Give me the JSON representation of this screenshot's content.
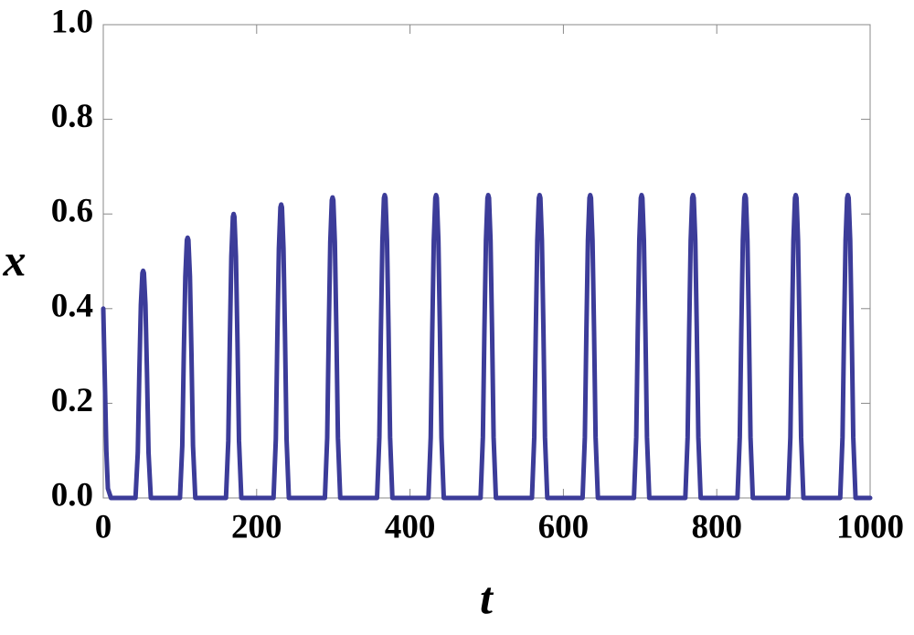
{
  "chart_data": {
    "type": "line",
    "x_label": "t",
    "y_label": "x",
    "color": "#3c3c99",
    "xlim": [
      0,
      1000
    ],
    "ylim": [
      0,
      1
    ],
    "xticks": [
      0,
      200,
      400,
      600,
      800,
      1000
    ],
    "yticks": [
      {
        "value": 0,
        "label": "0.0"
      },
      0.2,
      0.4,
      0.6,
      0.8,
      {
        "value": 1,
        "label": "1.0"
      }
    ],
    "x": [
      0,
      2,
      4,
      6,
      10,
      42,
      45,
      47,
      49,
      51,
      52,
      53,
      55,
      57,
      59,
      62,
      100,
      103,
      105,
      107,
      109,
      110,
      111,
      113,
      115,
      117,
      120,
      160,
      163,
      165,
      167,
      169,
      170,
      171,
      173,
      175,
      177,
      180,
      222,
      225,
      227,
      229,
      231,
      232,
      233,
      235,
      237,
      239,
      242,
      289,
      292,
      294,
      296,
      298,
      299,
      300,
      302,
      304,
      306,
      309,
      357,
      360,
      362,
      364,
      366,
      367,
      368,
      370,
      372,
      374,
      377,
      424,
      427,
      429,
      431,
      433,
      434,
      435,
      437,
      439,
      441,
      444,
      492,
      495,
      497,
      499,
      501,
      502,
      503,
      505,
      507,
      509,
      512,
      559,
      562,
      564,
      566,
      568,
      569,
      570,
      572,
      574,
      576,
      579,
      625,
      628,
      630,
      632,
      634,
      635,
      636,
      638,
      640,
      642,
      645,
      692,
      695,
      697,
      699,
      701,
      702,
      703,
      705,
      707,
      709,
      712,
      759,
      762,
      764,
      766,
      768,
      769,
      770,
      772,
      774,
      776,
      779,
      827,
      830,
      832,
      834,
      836,
      837,
      838,
      840,
      842,
      844,
      847,
      893,
      896,
      898,
      900,
      902,
      903,
      904,
      906,
      908,
      910,
      913,
      961,
      964,
      966,
      968,
      970,
      971,
      972,
      974,
      976,
      978,
      981,
      1000
    ],
    "values": [
      0.4,
      0.25,
      0.1,
      0.02,
      0,
      0,
      0.096,
      0.264,
      0.408,
      0.475,
      0.48,
      0.475,
      0.408,
      0.264,
      0.096,
      0,
      0,
      0.11,
      0.303,
      0.468,
      0.545,
      0.55,
      0.545,
      0.468,
      0.303,
      0.11,
      0,
      0,
      0.12,
      0.33,
      0.51,
      0.594,
      0.6,
      0.594,
      0.51,
      0.33,
      0.12,
      0,
      0,
      0.124,
      0.341,
      0.527,
      0.614,
      0.62,
      0.614,
      0.527,
      0.341,
      0.124,
      0,
      0,
      0.127,
      0.349,
      0.54,
      0.629,
      0.635,
      0.629,
      0.54,
      0.349,
      0.127,
      0,
      0,
      0.128,
      0.352,
      0.544,
      0.634,
      0.64,
      0.634,
      0.544,
      0.352,
      0.128,
      0,
      0,
      0.128,
      0.352,
      0.544,
      0.634,
      0.64,
      0.634,
      0.544,
      0.352,
      0.128,
      0,
      0,
      0.128,
      0.352,
      0.544,
      0.634,
      0.64,
      0.634,
      0.544,
      0.352,
      0.128,
      0,
      0,
      0.128,
      0.352,
      0.544,
      0.634,
      0.64,
      0.634,
      0.544,
      0.352,
      0.128,
      0,
      0,
      0.128,
      0.352,
      0.544,
      0.634,
      0.64,
      0.634,
      0.544,
      0.352,
      0.128,
      0,
      0,
      0.128,
      0.352,
      0.544,
      0.634,
      0.64,
      0.634,
      0.544,
      0.352,
      0.128,
      0,
      0,
      0.128,
      0.352,
      0.544,
      0.634,
      0.64,
      0.634,
      0.544,
      0.352,
      0.128,
      0,
      0,
      0.128,
      0.352,
      0.544,
      0.634,
      0.64,
      0.634,
      0.544,
      0.352,
      0.128,
      0,
      0,
      0.128,
      0.352,
      0.544,
      0.634,
      0.64,
      0.634,
      0.544,
      0.352,
      0.128,
      0,
      0,
      0.128,
      0.352,
      0.544,
      0.634,
      0.64,
      0.634,
      0.544,
      0.352,
      0.128,
      0,
      0
    ]
  }
}
